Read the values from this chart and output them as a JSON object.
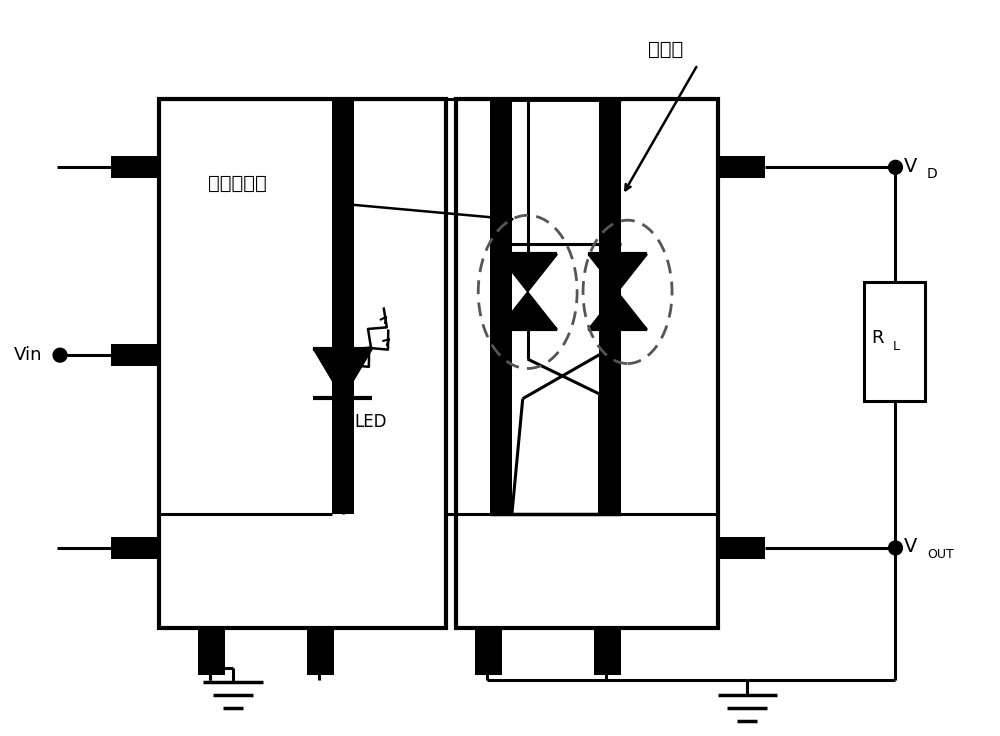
{
  "bg_color": "#ffffff",
  "line_color": "#000000",
  "text_color": "#000000",
  "label_guangchu": "光触发电路",
  "label_kekegui": "可控硅",
  "label_LED": "LED",
  "label_Vin": "Vin",
  "label_VD": "V",
  "label_VD_sub": "D",
  "label_VOUT": "V",
  "label_VOUT_sub": "OUT",
  "label_RL": "R",
  "label_RL_sub": "L"
}
